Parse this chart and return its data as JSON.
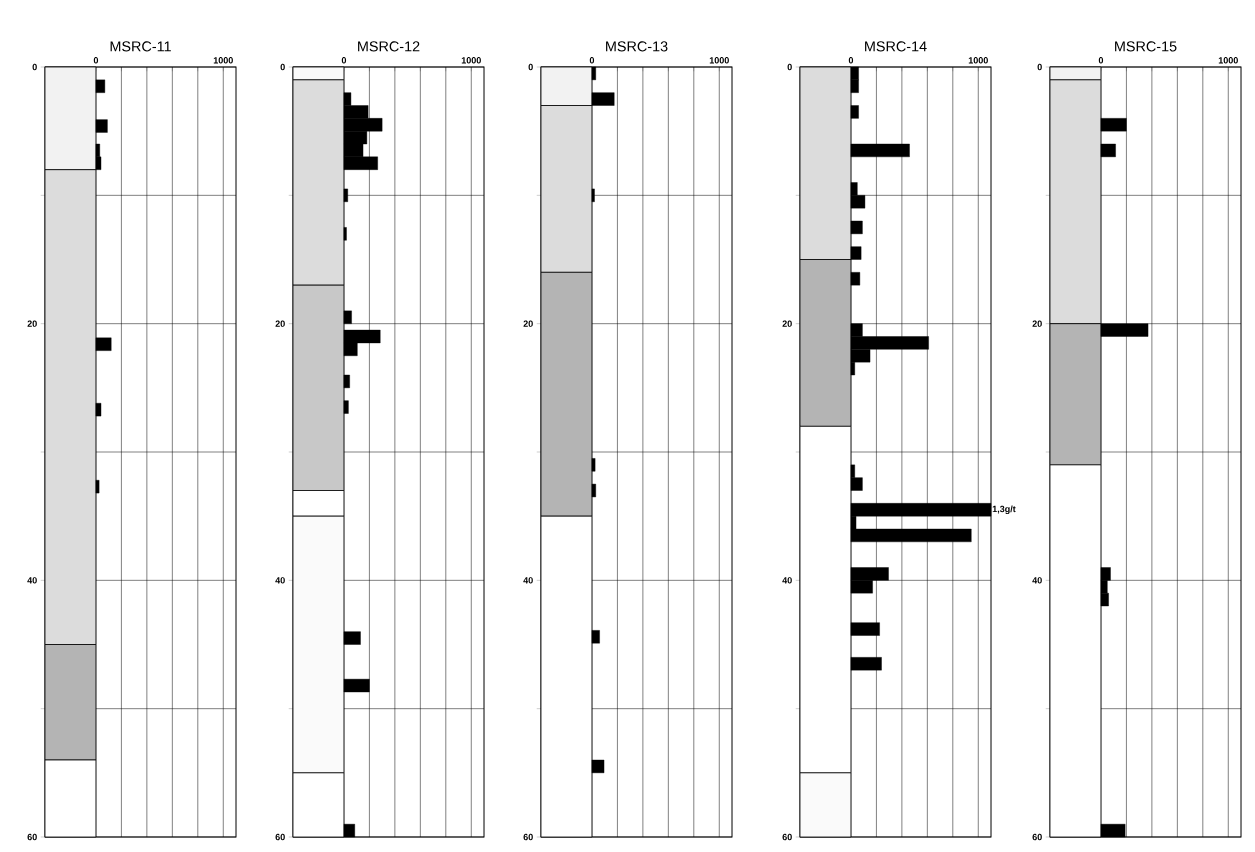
{
  "chart_data": [
    {
      "type": "bar",
      "orientation": "horizontal",
      "title": "MSRC-11",
      "color": "#000000",
      "grid": true,
      "xlim": [
        -400,
        1100
      ],
      "xticks": [
        0,
        {
          "value": 200,
          "label": null
        },
        {
          "value": 400,
          "label": null
        },
        {
          "value": 600,
          "label": null
        },
        {
          "value": 800,
          "label": null
        },
        1000
      ],
      "ylim": [
        60,
        0
      ],
      "yticks": [
        0,
        {
          "value": 10,
          "label": null
        },
        20,
        {
          "value": 30,
          "label": null
        },
        40,
        {
          "value": 50,
          "label": null
        },
        60
      ],
      "x": [
        1.5,
        4.6,
        6.5,
        7.5,
        21.6,
        26.7,
        32.7
      ],
      "values": [
        70,
        90,
        30,
        40,
        120,
        40,
        25
      ],
      "bands": [
        {
          "axis": "y",
          "from": 0,
          "to": 8,
          "color": "#f2f2f2"
        },
        {
          "axis": "y",
          "from": 8,
          "to": 45,
          "color": "#dcdcdc"
        },
        {
          "axis": "y",
          "from": 45,
          "to": 54,
          "color": "#b4b4b4"
        },
        {
          "axis": "y",
          "from": 54,
          "to": 60,
          "color": "#ffffff"
        }
      ]
    },
    {
      "type": "bar",
      "orientation": "horizontal",
      "title": "MSRC-12",
      "color": "#000000",
      "grid": true,
      "xlim": [
        -400,
        1100
      ],
      "xticks": [
        0,
        {
          "value": 200,
          "label": null
        },
        {
          "value": 400,
          "label": null
        },
        {
          "value": 600,
          "label": null
        },
        {
          "value": 800,
          "label": null
        },
        1000
      ],
      "ylim": [
        60,
        0
      ],
      "yticks": [
        0,
        {
          "value": 10,
          "label": null
        },
        20,
        {
          "value": 30,
          "label": null
        },
        40,
        {
          "value": 50,
          "label": null
        },
        60
      ],
      "x": [
        2.5,
        3.5,
        4.5,
        5.5,
        6.5,
        7.5,
        10,
        13,
        19.5,
        21,
        22,
        24.5,
        26.5,
        44.5,
        48.2,
        59.5
      ],
      "values": [
        55,
        190,
        300,
        180,
        150,
        265,
        30,
        20,
        60,
        285,
        105,
        45,
        35,
        130,
        200,
        85
      ],
      "bands": [
        {
          "axis": "y",
          "from": 0,
          "to": 1,
          "color": "#fafafa"
        },
        {
          "axis": "y",
          "from": 1,
          "to": 17,
          "color": "#dcdcdc"
        },
        {
          "axis": "y",
          "from": 17,
          "to": 33,
          "color": "#c8c8c8"
        },
        {
          "axis": "y",
          "from": 33,
          "to": 35,
          "color": "#ffffff"
        },
        {
          "axis": "y",
          "from": 35,
          "to": 55,
          "color": "#fafafa"
        },
        {
          "axis": "y",
          "from": 55,
          "to": 60,
          "color": "#ffffff"
        }
      ]
    },
    {
      "type": "bar",
      "orientation": "horizontal",
      "title": "MSRC-13",
      "color": "#000000",
      "grid": true,
      "xlim": [
        -400,
        1100
      ],
      "xticks": [
        0,
        {
          "value": 200,
          "label": null
        },
        {
          "value": 400,
          "label": null
        },
        {
          "value": 600,
          "label": null
        },
        {
          "value": 800,
          "label": null
        },
        1000
      ],
      "ylim": [
        60,
        0
      ],
      "yticks": [
        0,
        {
          "value": 10,
          "label": null
        },
        20,
        {
          "value": 30,
          "label": null
        },
        40,
        {
          "value": 50,
          "label": null
        },
        60
      ],
      "x": [
        0.5,
        2.5,
        10,
        31,
        33,
        44.4,
        54.5
      ],
      "values": [
        30,
        175,
        20,
        25,
        30,
        60,
        95
      ],
      "bands": [
        {
          "axis": "y",
          "from": 0,
          "to": 3,
          "color": "#f2f2f2"
        },
        {
          "axis": "y",
          "from": 3,
          "to": 16,
          "color": "#dcdcdc"
        },
        {
          "axis": "y",
          "from": 16,
          "to": 35,
          "color": "#b4b4b4"
        },
        {
          "axis": "y",
          "from": 35,
          "to": 60,
          "color": "#ffffff"
        }
      ]
    },
    {
      "type": "bar",
      "orientation": "horizontal",
      "title": "MSRC-14",
      "color": "#000000",
      "grid": true,
      "xlim": [
        -400,
        1100
      ],
      "xticks": [
        0,
        {
          "value": 200,
          "label": null
        },
        {
          "value": 400,
          "label": null
        },
        {
          "value": 600,
          "label": null
        },
        {
          "value": 800,
          "label": null
        },
        1000
      ],
      "ylim": [
        60,
        0
      ],
      "yticks": [
        0,
        {
          "value": 10,
          "label": null
        },
        20,
        {
          "value": 30,
          "label": null
        },
        40,
        {
          "value": 50,
          "label": null
        },
        60
      ],
      "x": [
        0.5,
        1.5,
        3.5,
        6.5,
        9.5,
        10.5,
        12.5,
        14.5,
        16.5,
        20.5,
        21.5,
        22.5,
        23.5,
        31.5,
        32.5,
        34.5,
        35.5,
        36.5,
        39.5,
        40.5,
        43.8,
        46.5
      ],
      "values": [
        60,
        60,
        60,
        460,
        50,
        110,
        90,
        80,
        70,
        90,
        610,
        150,
        30,
        30,
        90,
        1100,
        40,
        945,
        295,
        170,
        225,
        240
      ],
      "annotations": [
        {
          "text": "1,3g/t",
          "x": 1100,
          "y": 34.5
        }
      ],
      "bands": [
        {
          "axis": "y",
          "from": 0,
          "to": 15,
          "color": "#dcdcdc"
        },
        {
          "axis": "y",
          "from": 15,
          "to": 28,
          "color": "#b4b4b4"
        },
        {
          "axis": "y",
          "from": 28,
          "to": 55,
          "color": "#ffffff"
        },
        {
          "axis": "y",
          "from": 55,
          "to": 60,
          "color": "#fafafa"
        }
      ]
    },
    {
      "type": "bar",
      "orientation": "horizontal",
      "title": "MSRC-15",
      "color": "#000000",
      "grid": true,
      "xlim": [
        -400,
        1100
      ],
      "xticks": [
        0,
        {
          "value": 200,
          "label": null
        },
        {
          "value": 400,
          "label": null
        },
        {
          "value": 600,
          "label": null
        },
        {
          "value": 800,
          "label": null
        },
        1000
      ],
      "ylim": [
        60,
        0
      ],
      "yticks": [
        0,
        {
          "value": 10,
          "label": null
        },
        20,
        {
          "value": 30,
          "label": null
        },
        40,
        {
          "value": 50,
          "label": null
        },
        60
      ],
      "x": [
        4.5,
        6.5,
        20.5,
        39.5,
        40.5,
        41.5,
        59.5
      ],
      "values": [
        200,
        115,
        370,
        75,
        50,
        60,
        190
      ],
      "bands": [
        {
          "axis": "y",
          "from": 0,
          "to": 1,
          "color": "#f2f2f2"
        },
        {
          "axis": "y",
          "from": 1,
          "to": 20,
          "color": "#dcdcdc"
        },
        {
          "axis": "y",
          "from": 20,
          "to": 31,
          "color": "#b4b4b4"
        },
        {
          "axis": "y",
          "from": 31,
          "to": 60,
          "color": "#ffffff"
        }
      ]
    }
  ]
}
